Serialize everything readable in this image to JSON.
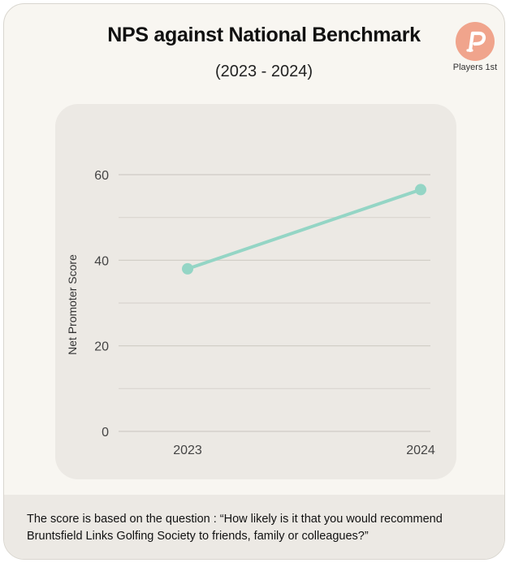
{
  "header": {
    "title": "NPS against National Benchmark",
    "subtitle": "(2023 - 2024)"
  },
  "logo": {
    "text": "Players 1st",
    "icon": "p-logo-icon",
    "color": "#f0a48c"
  },
  "footer": {
    "text": "The score is based on the question : “How likely is it that you would recommend Bruntsfield Links Golfing Society to friends, family or colleagues?”"
  },
  "chart_data": {
    "type": "line",
    "x": [
      "2023",
      "2024"
    ],
    "series": [
      {
        "values": [
          38,
          56.5
        ],
        "color": "#94d5c5"
      }
    ],
    "title": "NPS against National Benchmark",
    "subtitle": "(2023 - 2024)",
    "xlabel": "",
    "ylabel": "Net Promoter Score",
    "ylim": [
      0,
      60
    ],
    "yticks": [
      0,
      20,
      40,
      60
    ],
    "grid": true,
    "legend": "none"
  }
}
